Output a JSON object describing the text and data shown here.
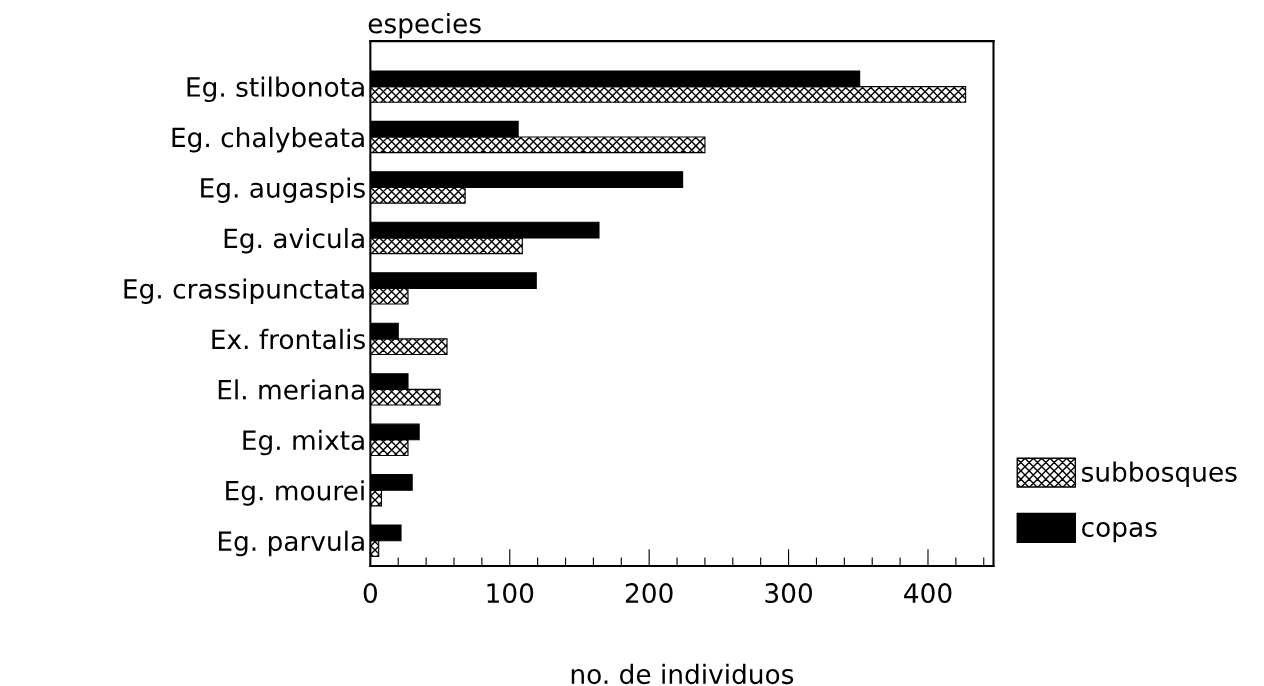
{
  "chart_data": {
    "type": "bar",
    "orientation": "horizontal",
    "ylabel": "especies",
    "xlabel": "no. de individuos",
    "categories": [
      "Eg. stilbonota",
      "Eg. chalybeata",
      "Eg. augaspis",
      "Eg. avicula",
      "Eg. crassipunctata",
      "Ex. frontalis",
      "El. meriana",
      "Eg. mixta",
      "Eg. mourei",
      "Eg. parvula"
    ],
    "series": [
      {
        "name": "subbosques",
        "color": "#000000",
        "values": [
          427,
          240,
          68,
          109,
          27,
          55,
          50,
          27,
          8,
          6
        ]
      },
      {
        "name": "copas",
        "color": "#000000",
        "values": [
          351,
          106,
          224,
          164,
          119,
          20,
          27,
          35,
          30,
          22
        ]
      }
    ],
    "xlim": [
      0,
      447
    ],
    "xticks": [
      0,
      {
        "value": 20,
        "label": null
      },
      {
        "value": 40,
        "label": null
      },
      {
        "value": 60,
        "label": null
      },
      {
        "value": 80,
        "label": null
      },
      100,
      {
        "value": 120,
        "label": null
      },
      {
        "value": 140,
        "label": null
      },
      {
        "value": 160,
        "label": null
      },
      {
        "value": 180,
        "label": null
      },
      200,
      {
        "value": 220,
        "label": null
      },
      {
        "value": 240,
        "label": null
      },
      {
        "value": 260,
        "label": null
      },
      {
        "value": 280,
        "label": null
      },
      300,
      {
        "value": 320,
        "label": null
      },
      {
        "value": 340,
        "label": null
      },
      {
        "value": 360,
        "label": null
      },
      {
        "value": 380,
        "label": null
      },
      400,
      {
        "value": 420,
        "label": null
      },
      {
        "value": 440,
        "label": null
      }
    ],
    "legend": "bottom right",
    "grid": false
  }
}
